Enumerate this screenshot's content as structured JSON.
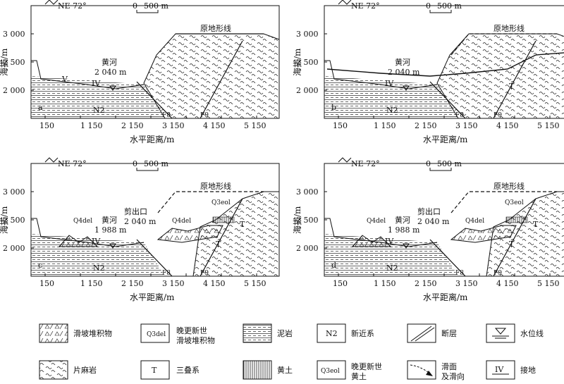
{
  "panels": [
    {
      "id": "a",
      "label": "a",
      "north": "NE 72°",
      "scale": "500 m",
      "scale_zero": "0",
      "river_name": "黄河",
      "river_elev": "2 040 m",
      "orig_surface": "原地形线",
      "y_title": "海拔/m",
      "x_title": "水平距离/m",
      "y_ticks": [
        "3 000",
        "2 500",
        "2 000"
      ],
      "x_ticks": [
        "150",
        "1 150",
        "2 150",
        "3 150",
        "4 150",
        "5 150"
      ],
      "unit_N2": "N2",
      "fault_1": "F8",
      "fault_2": "F9",
      "terrace": "IV",
      "terrace_mid": "V"
    },
    {
      "id": "b",
      "label": "b",
      "north": "NE 72°",
      "scale": "500 m",
      "scale_zero": "0",
      "river_name": "黄河",
      "river_elev": "2 040 m",
      "orig_surface": "原地形线",
      "y_title": "海拔/m",
      "x_title": "水平距离/m",
      "y_ticks": [
        "3 000",
        "2 500",
        "2 000"
      ],
      "x_ticks": [
        "150",
        "1 150",
        "2 150",
        "3 150",
        "4 150",
        "5 150"
      ],
      "unit_N2": "N2",
      "fault_1": "F8",
      "fault_2": "F9",
      "terrace": "IV",
      "unit_T": "T"
    },
    {
      "id": "c",
      "label": "c",
      "north": "NE 72°",
      "scale": "500 m",
      "scale_zero": "0",
      "river_name": "黄河",
      "river_elev": "1 988 m",
      "orig_surface": "原地形线",
      "cut_label": "剪出口",
      "cut_elev": "2 040 m",
      "y_title": "海拔/m",
      "x_title": "水平距离/m",
      "y_ticks": [
        "3 000",
        "2 500",
        "2 000"
      ],
      "x_ticks": [
        "150",
        "1 150",
        "2 150",
        "3 150",
        "4 150",
        "5 150"
      ],
      "unit_N2": "N2",
      "fault_1": "F8",
      "fault_2": "F9",
      "terrace": "IV",
      "unit_T": "T",
      "unit_T2": "T",
      "q_del_1": "Q4del",
      "q_del_2": "Q4del",
      "q_eol": "Q3eol"
    },
    {
      "id": "d",
      "label": "d",
      "north": "NE 72°",
      "scale": "500 m",
      "scale_zero": "0",
      "river_name": "黄河",
      "river_elev": "1 988 m",
      "orig_surface": "原地形线",
      "cut_label": "剪出口",
      "cut_elev": "2 040 m",
      "y_title": "海拔/m",
      "x_title": "水平距离/m",
      "y_ticks": [
        "3 000",
        "2 500",
        "2 000"
      ],
      "x_ticks": [
        "150",
        "1 150",
        "2 150",
        "3 150",
        "4 150",
        "5 150"
      ],
      "unit_N2": "N2",
      "fault_1": "F8",
      "fault_2": "F9",
      "terrace": "IV",
      "unit_T": "T",
      "unit_T2": "T",
      "q_del_1": "Q4del",
      "q_del_2": "Q4del",
      "q_eol": "Q3eol"
    }
  ],
  "legend": [
    {
      "name": "legend-landslide-deposit",
      "text": "滑坡堆积物",
      "text2": ""
    },
    {
      "name": "legend-late-pleistocene-landslide",
      "text": "晚更新世",
      "text2": "滑坡堆积物",
      "code": "Q3del"
    },
    {
      "name": "legend-mudstone",
      "text": "泥岩",
      "text2": ""
    },
    {
      "name": "legend-neogene",
      "text": "新近系",
      "text2": "",
      "code": "N2"
    },
    {
      "name": "legend-fault",
      "text": "断层",
      "text2": ""
    },
    {
      "name": "legend-water-level",
      "text": "水位线",
      "text2": ""
    },
    {
      "name": "legend-gneiss",
      "text": "片麻岩",
      "text2": ""
    },
    {
      "name": "legend-triassic",
      "text": "三叠系",
      "text2": "",
      "code": "T"
    },
    {
      "name": "legend-loess",
      "text": "黄土",
      "text2": ""
    },
    {
      "name": "legend-late-pleistocene-loess",
      "text": "晚更新世",
      "text2": "黄土",
      "code": "Q3eol"
    },
    {
      "name": "legend-slip-surface",
      "text": "滑面",
      "text2": "及滑向"
    },
    {
      "name": "legend-terrace",
      "text": "接地",
      "text2": "",
      "code": "IV"
    }
  ]
}
